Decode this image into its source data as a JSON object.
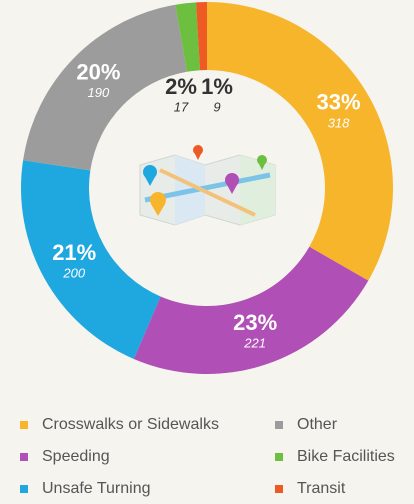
{
  "chart_data": {
    "type": "donut",
    "categories": [
      "Crosswalks or Sidewalks",
      "Speeding",
      "Unsafe Turning",
      "Other",
      "Bike Facilities",
      "Transit"
    ],
    "values": [
      318,
      221,
      200,
      190,
      17,
      9
    ],
    "percents": [
      33,
      23,
      21,
      20,
      2,
      1
    ],
    "percent_labels": [
      "33%",
      "23%",
      "21%",
      "20%",
      "2%",
      "1%"
    ],
    "colors": [
      "#f7b52c",
      "#b04fb5",
      "#1fa7e0",
      "#9c9c9c",
      "#6cbf3f",
      "#ee5a24"
    ]
  }
}
